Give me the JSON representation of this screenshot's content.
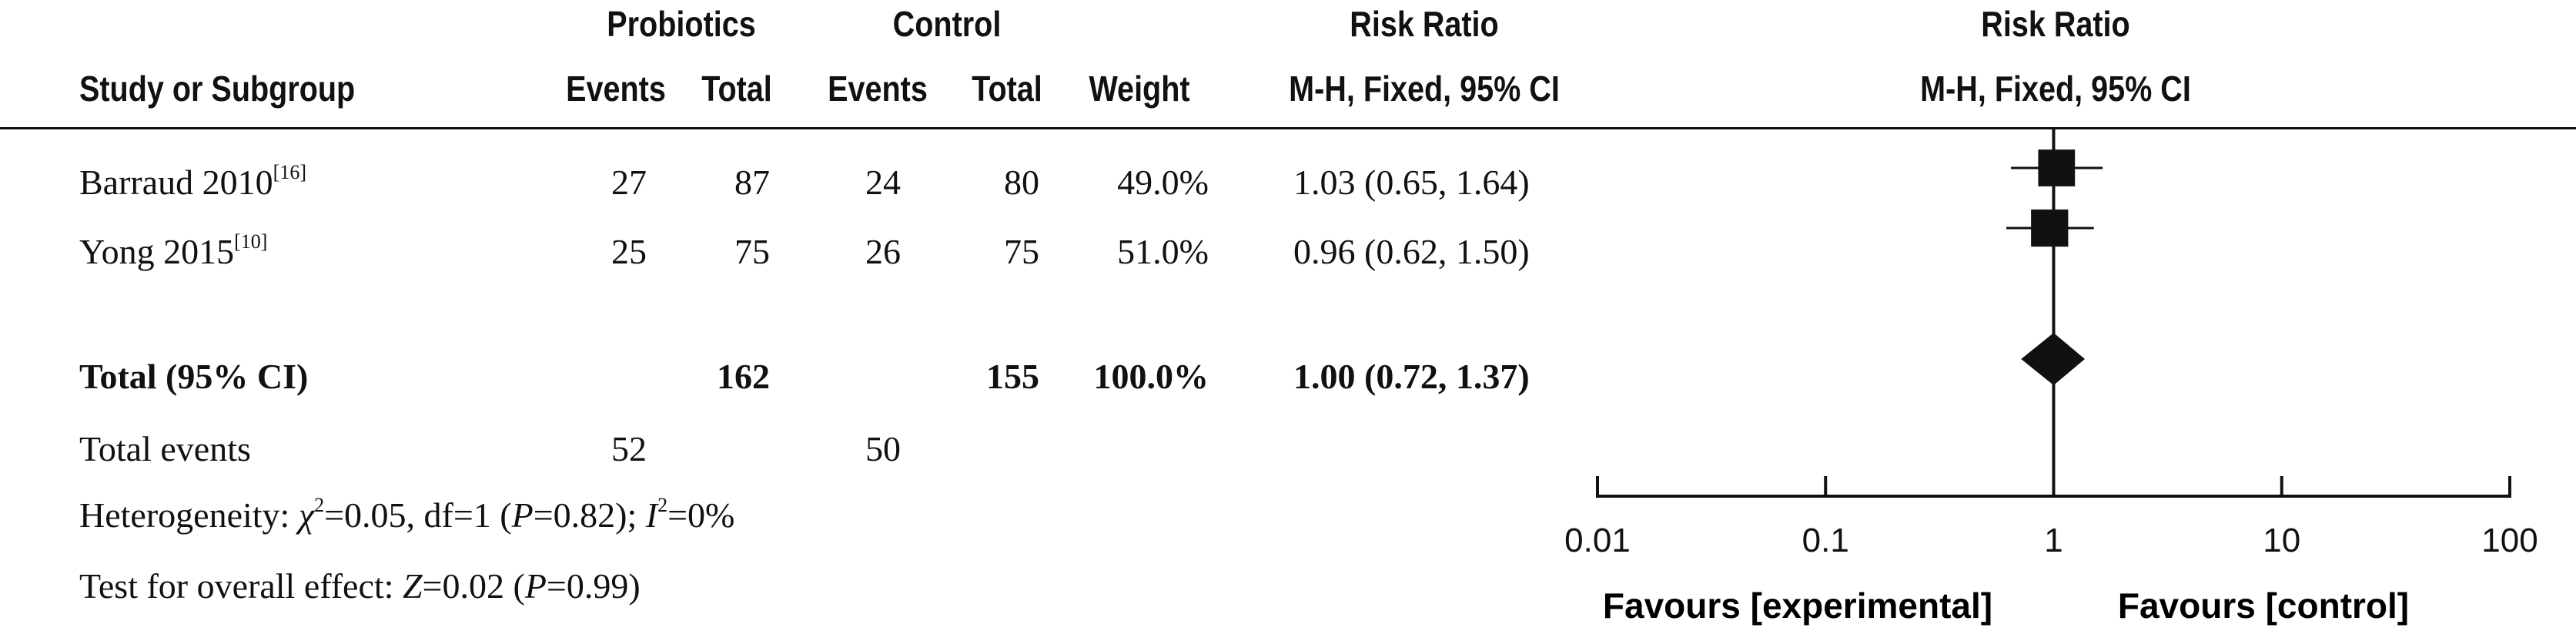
{
  "headers": {
    "study": "Study or Subgroup",
    "group1": "Probiotics",
    "group2": "Control",
    "events": "Events",
    "total": "Total",
    "weight": "Weight",
    "rr_title": "Risk Ratio",
    "rr_method": "M-H, Fixed, 95% CI",
    "plot_title": "Risk Ratio",
    "plot_method": "M-H, Fixed, 95% CI"
  },
  "studies": [
    {
      "name": "Barraud 2010",
      "ref": "[16]",
      "e1": "27",
      "t1": "87",
      "e2": "24",
      "t2": "80",
      "weight": "49.0%",
      "ci_text": "1.03 (0.65, 1.64)"
    },
    {
      "name": "Yong 2015",
      "ref": "[10]",
      "e1": "25",
      "t1": "75",
      "e2": "26",
      "t2": "75",
      "weight": "51.0%",
      "ci_text": "0.96 (0.62, 1.50)"
    }
  ],
  "total": {
    "label": "Total (95% CI)",
    "t1": "162",
    "t2": "155",
    "weight": "100.0%",
    "ci_text": "1.00 (0.72, 1.37)"
  },
  "events_total": {
    "label": "Total events",
    "e1": "52",
    "e2": "50"
  },
  "heterogeneity": {
    "prefix": "Heterogeneity: ",
    "chi_symbol": "χ",
    "chi_sup": "2",
    "chi_rest": "=0.05, df=1 (",
    "p_symbol": "P",
    "p_rest": "=0.82); ",
    "i_symbol": "I",
    "i_sup": "2",
    "i_rest": "=0%"
  },
  "overall": {
    "prefix": "Test for overall effect: ",
    "z_symbol": "Z",
    "z_rest": "=0.02 (",
    "p_symbol": "P",
    "p_rest": "=0.99)"
  },
  "favours": {
    "left": "Favours [experimental]",
    "right": "Favours [control]"
  },
  "chart_data": {
    "type": "forest",
    "scale": "log",
    "xlim": [
      0.01,
      100
    ],
    "ticks": [
      0.01,
      0.1,
      1,
      10,
      100
    ],
    "tick_labels": [
      "0.01",
      "0.1",
      "1",
      "10",
      "100"
    ],
    "reference_line": 1,
    "studies": [
      {
        "name": "Barraud 2010",
        "rr": 1.03,
        "lower": 0.65,
        "upper": 1.64,
        "weight": 49.0
      },
      {
        "name": "Yong 2015",
        "rr": 0.96,
        "lower": 0.62,
        "upper": 1.5,
        "weight": 51.0
      }
    ],
    "pooled": {
      "rr": 1.0,
      "lower": 0.72,
      "upper": 1.37
    },
    "colors": {
      "marks": "#111111"
    }
  }
}
